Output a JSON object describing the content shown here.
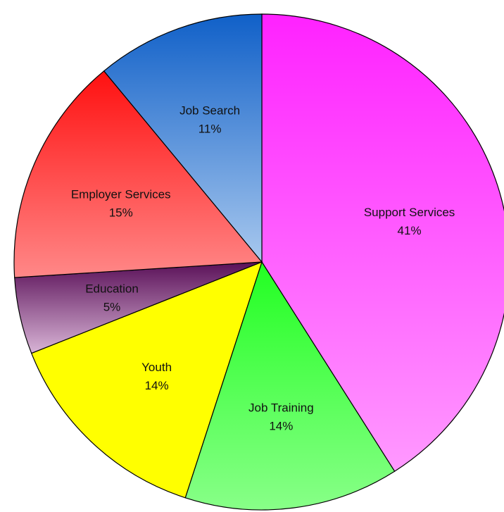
{
  "chart_data": {
    "type": "pie",
    "title": "",
    "start_angle_deg": 0,
    "direction": "clockwise",
    "slices": [
      {
        "label": "Support Services",
        "pct_label": "41%",
        "value": 41,
        "color_top": "#ff22ff",
        "color_bottom": "#ff99ff"
      },
      {
        "label": "Job Training",
        "pct_label": "14%",
        "value": 14,
        "color_top": "#22ff22",
        "color_bottom": "#88ff88"
      },
      {
        "label": "Youth",
        "pct_label": "14%",
        "value": 14,
        "color_top": "#ffff00",
        "color_bottom": "#ffff00"
      },
      {
        "label": "Education",
        "pct_label": "5%",
        "value": 5,
        "color_top": "#5a1058",
        "color_bottom": "#d8b4d6"
      },
      {
        "label": "Employer Services",
        "pct_label": "15%",
        "value": 15,
        "color_top": "#ff1010",
        "color_bottom": "#ff8888"
      },
      {
        "label": "Job Search",
        "pct_label": "11%",
        "value": 11,
        "color_top": "#1060c8",
        "color_bottom": "#a8c8ee"
      }
    ]
  }
}
